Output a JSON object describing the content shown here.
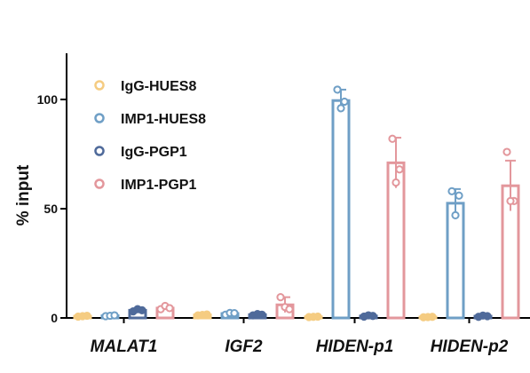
{
  "chart_data": {
    "type": "bar",
    "title": "",
    "xlabel": "",
    "ylabel": "% input",
    "ylim": [
      0,
      120
    ],
    "yticks": [
      0,
      50,
      100
    ],
    "grid": false,
    "legend_position": "top-left",
    "categories": [
      "MALAT1",
      "IGF2",
      "HIDEN-p1",
      "HIDEN-p2"
    ],
    "series": [
      {
        "name": "IgG-HUES8",
        "color": "#f5cc82",
        "values": [
          0.8,
          1.4,
          0.5,
          0.4
        ],
        "errors": [
          0.3,
          0.3,
          0.3,
          0.3
        ],
        "points": [
          [
            0.6,
            0.8,
            1.0
          ],
          [
            1.2,
            1.4,
            1.6
          ],
          [
            0.4,
            0.5,
            0.6
          ],
          [
            0.3,
            0.4,
            0.5
          ]
        ]
      },
      {
        "name": "IMP1-HUES8",
        "color": "#6f9fc6",
        "values": [
          1.0,
          2.0,
          99.5,
          52.5
        ],
        "errors": [
          0.3,
          0.8,
          5.0,
          6.5
        ],
        "points": [
          [
            0.8,
            1.0,
            1.2
          ],
          [
            1.5,
            2.3,
            2.2
          ],
          [
            104.5,
            99.0,
            96.0
          ],
          [
            58.0,
            56.0,
            47.0
          ]
        ]
      },
      {
        "name": "IgG-PGP1",
        "color": "#4f6a9a",
        "values": [
          3.5,
          1.5,
          0.9,
          0.8
        ],
        "errors": [
          0.6,
          0.4,
          0.3,
          0.3
        ],
        "points": [
          [
            3.0,
            4.0,
            3.5
          ],
          [
            1.2,
            1.8,
            1.5
          ],
          [
            0.6,
            1.2,
            0.9
          ],
          [
            0.5,
            1.1,
            0.8
          ]
        ]
      },
      {
        "name": "IMP1-PGP1",
        "color": "#e3979c",
        "values": [
          4.5,
          6.0,
          71.0,
          60.5
        ],
        "errors": [
          0.8,
          3.5,
          11.5,
          11.5
        ],
        "points": [
          [
            4.0,
            5.5,
            4.5
          ],
          [
            9.5,
            5.0,
            4.0
          ],
          [
            82.0,
            68.0,
            62.0
          ],
          [
            76.0,
            53.5,
            53.5
          ]
        ]
      }
    ]
  }
}
